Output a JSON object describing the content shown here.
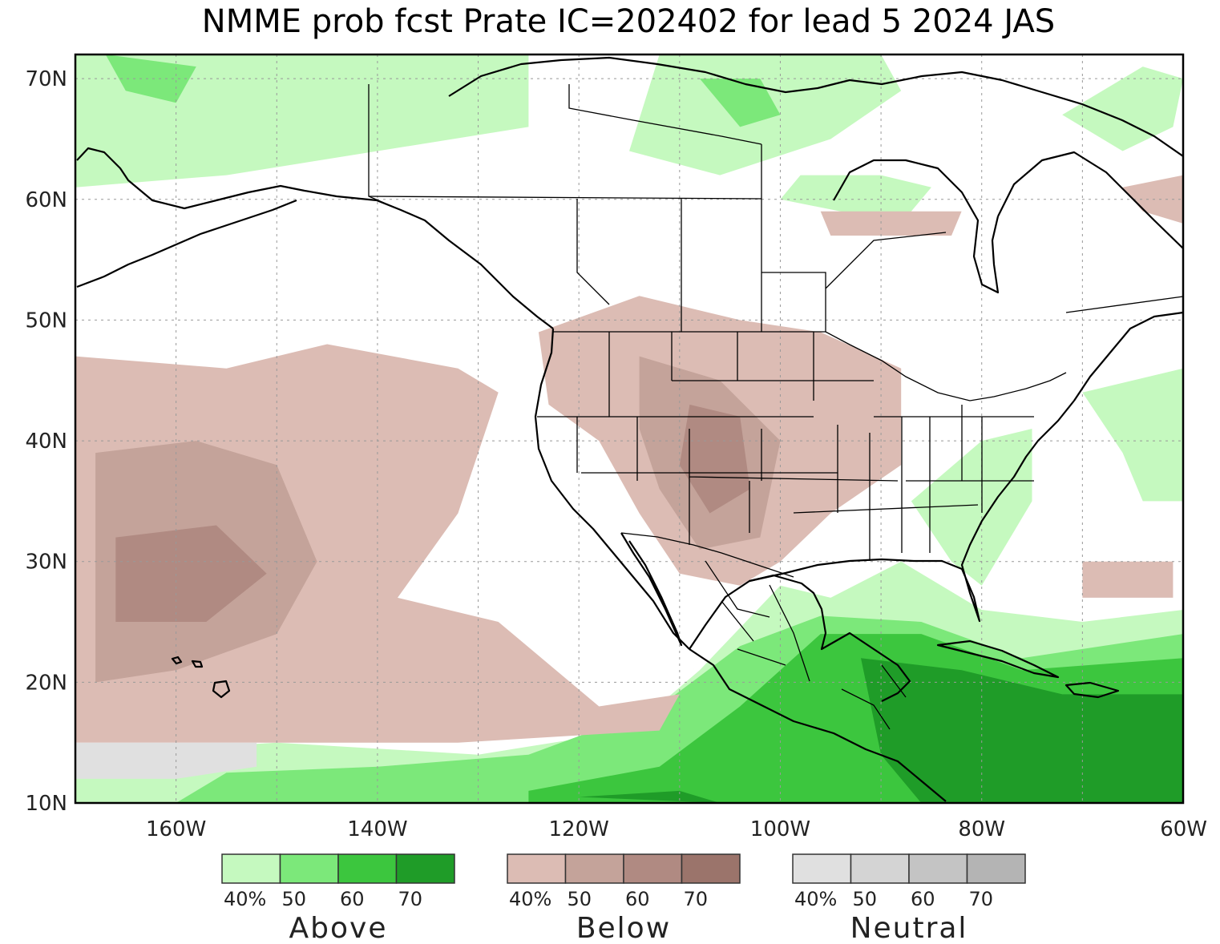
{
  "title": "NMME prob fcst Prate IC=202402 for lead 5 2024 JAS",
  "colors": {
    "above": [
      "#c5f9bf",
      "#7ce87a",
      "#3cc63e",
      "#1f9c28"
    ],
    "below": [
      "#dcbcb4",
      "#c4a39a",
      "#b08a82",
      "#9b746b"
    ],
    "neutral": [
      "#e0e0e0",
      "#d4d4d4",
      "#c4c4c4",
      "#b4b4b4"
    ]
  },
  "axes": {
    "lat_labels": [
      "70N",
      "60N",
      "50N",
      "40N",
      "30N",
      "20N",
      "10N"
    ],
    "lon_labels": [
      "160W",
      "140W",
      "120W",
      "100W",
      "80W",
      "60W"
    ]
  },
  "legend": [
    {
      "id": "above",
      "label": "Above",
      "ticks": [
        "40%",
        "50",
        "60",
        "70"
      ]
    },
    {
      "id": "below",
      "label": "Below",
      "ticks": [
        "40%",
        "50",
        "60",
        "70"
      ]
    },
    {
      "id": "neutral",
      "label": "Neutral",
      "ticks": [
        "40%",
        "50",
        "60",
        "70"
      ]
    }
  ],
  "map_extent": {
    "lon_min": -170,
    "lon_max": -60,
    "lat_min": 10,
    "lat_max": 72
  },
  "regions": [
    {
      "name": "arctic-canada-above",
      "category": "above",
      "level": 1,
      "polys": [
        [
          [
            -170,
            72
          ],
          [
            -125,
            72
          ],
          [
            -125,
            66
          ],
          [
            -140,
            64
          ],
          [
            -155,
            62
          ],
          [
            -170,
            61
          ]
        ],
        [
          [
            -112,
            72
          ],
          [
            -90,
            72
          ],
          [
            -88,
            69
          ],
          [
            -95,
            65
          ],
          [
            -106,
            62
          ],
          [
            -115,
            64
          ]
        ],
        [
          [
            -100,
            60
          ],
          [
            -88,
            58
          ],
          [
            -85,
            61
          ],
          [
            -90,
            62
          ],
          [
            -98,
            62
          ]
        ],
        [
          [
            -72,
            67
          ],
          [
            -64,
            71
          ],
          [
            -60,
            70
          ],
          [
            -61,
            66
          ],
          [
            -66,
            64
          ]
        ]
      ]
    },
    {
      "name": "alaska-above-50",
      "category": "above",
      "level": 2,
      "polys": [
        [
          [
            -167,
            72
          ],
          [
            -158,
            71
          ],
          [
            -160,
            68
          ],
          [
            -165,
            69
          ]
        ],
        [
          [
            -108,
            70
          ],
          [
            -102,
            70
          ],
          [
            -100,
            67
          ],
          [
            -104,
            66
          ]
        ]
      ]
    },
    {
      "name": "atlantic-above",
      "category": "above",
      "level": 1,
      "polys": [
        [
          [
            -70,
            44
          ],
          [
            -60,
            46
          ],
          [
            -60,
            35
          ],
          [
            -64,
            35
          ],
          [
            -66,
            39
          ]
        ]
      ]
    },
    {
      "name": "eastern-us-above",
      "category": "above",
      "level": 1,
      "polys": [
        [
          [
            -87,
            35
          ],
          [
            -80,
            40
          ],
          [
            -75,
            41
          ],
          [
            -75,
            35
          ],
          [
            -80,
            28
          ],
          [
            -83,
            30
          ]
        ]
      ]
    },
    {
      "name": "tropics-above-40",
      "category": "above",
      "level": 1,
      "polys": [
        [
          [
            -170,
            10
          ],
          [
            -170,
            14
          ],
          [
            -150,
            15
          ],
          [
            -130,
            14
          ],
          [
            -115,
            16
          ],
          [
            -108,
            21
          ],
          [
            -100,
            28
          ],
          [
            -95,
            27
          ],
          [
            -88,
            30
          ],
          [
            -80,
            26
          ],
          [
            -70,
            25
          ],
          [
            -60,
            26
          ],
          [
            -60,
            10
          ]
        ]
      ]
    },
    {
      "name": "tropics-above-50",
      "category": "above",
      "level": 2,
      "polys": [
        [
          [
            -160,
            10
          ],
          [
            -155,
            12.5
          ],
          [
            -140,
            13
          ],
          [
            -125,
            14
          ],
          [
            -112,
            18
          ],
          [
            -104,
            23
          ],
          [
            -96,
            25.5
          ],
          [
            -86,
            25
          ],
          [
            -76,
            22
          ],
          [
            -60,
            24
          ],
          [
            -60,
            10
          ]
        ]
      ]
    },
    {
      "name": "tropics-above-60",
      "category": "above",
      "level": 3,
      "polys": [
        [
          [
            -125,
            11
          ],
          [
            -112,
            13
          ],
          [
            -104,
            18
          ],
          [
            -96,
            24
          ],
          [
            -86,
            24
          ],
          [
            -76,
            21
          ],
          [
            -60,
            22
          ],
          [
            -60,
            10
          ],
          [
            -125,
            10
          ]
        ]
      ]
    },
    {
      "name": "tropics-above-70",
      "category": "above",
      "level": 4,
      "polys": [
        [
          [
            -120,
            10.5
          ],
          [
            -110,
            11
          ],
          [
            -106,
            10
          ]
        ],
        [
          [
            -92,
            22
          ],
          [
            -82,
            21
          ],
          [
            -72,
            19
          ],
          [
            -60,
            19
          ],
          [
            -60,
            10
          ],
          [
            -86,
            10
          ],
          [
            -90,
            14
          ]
        ]
      ]
    },
    {
      "name": "pacific-below-40",
      "category": "below",
      "level": 1,
      "polys": [
        [
          [
            -170,
            47
          ],
          [
            -155,
            46
          ],
          [
            -145,
            48
          ],
          [
            -132,
            46
          ],
          [
            -128,
            44
          ],
          [
            -132,
            34
          ],
          [
            -138,
            27
          ],
          [
            -128,
            25
          ],
          [
            -118,
            18
          ],
          [
            -110,
            19
          ],
          [
            -108,
            22
          ],
          [
            -112,
            16
          ],
          [
            -132,
            15
          ],
          [
            -152,
            15
          ],
          [
            -170,
            15
          ]
        ]
      ]
    },
    {
      "name": "pacific-below-50",
      "category": "below",
      "level": 2,
      "polys": [
        [
          [
            -168,
            39
          ],
          [
            -158,
            40
          ],
          [
            -150,
            38
          ],
          [
            -146,
            30
          ],
          [
            -150,
            24
          ],
          [
            -160,
            21
          ],
          [
            -168,
            20
          ]
        ]
      ]
    },
    {
      "name": "pacific-below-60",
      "category": "below",
      "level": 3,
      "polys": [
        [
          [
            -166,
            32
          ],
          [
            -156,
            33
          ],
          [
            -151,
            29
          ],
          [
            -157,
            25
          ],
          [
            -166,
            25
          ]
        ]
      ]
    },
    {
      "name": "west-us-below-40",
      "category": "below",
      "level": 1,
      "polys": [
        [
          [
            -124,
            49
          ],
          [
            -114,
            52
          ],
          [
            -104,
            50
          ],
          [
            -96,
            49
          ],
          [
            -88,
            46
          ],
          [
            -88,
            38
          ],
          [
            -95,
            34
          ],
          [
            -100,
            30
          ],
          [
            -104,
            28
          ],
          [
            -110,
            29
          ],
          [
            -114,
            34
          ],
          [
            -118,
            40
          ],
          [
            -123,
            43
          ]
        ]
      ]
    },
    {
      "name": "west-us-below-50",
      "category": "below",
      "level": 2,
      "polys": [
        [
          [
            -114,
            47
          ],
          [
            -106,
            45
          ],
          [
            -100,
            40
          ],
          [
            -102,
            32
          ],
          [
            -108,
            31
          ],
          [
            -112,
            36
          ],
          [
            -114,
            41
          ]
        ]
      ]
    },
    {
      "name": "west-us-below-60",
      "category": "below",
      "level": 3,
      "polys": [
        [
          [
            -109,
            43
          ],
          [
            -104,
            42
          ],
          [
            -103,
            36
          ],
          [
            -107,
            34
          ],
          [
            -110,
            38
          ]
        ]
      ]
    },
    {
      "name": "east-canada-below",
      "category": "below",
      "level": 1,
      "polys": [
        [
          [
            -96,
            59
          ],
          [
            -82,
            59
          ],
          [
            -83,
            57
          ],
          [
            -95,
            57
          ]
        ],
        [
          [
            -66,
            61
          ],
          [
            -60,
            62
          ],
          [
            -60,
            58
          ],
          [
            -64,
            59
          ]
        ]
      ]
    },
    {
      "name": "atlantic-below",
      "category": "below",
      "level": 1,
      "polys": [
        [
          [
            -70,
            30
          ],
          [
            -61,
            30
          ],
          [
            -61,
            27
          ],
          [
            -70,
            27
          ]
        ]
      ]
    },
    {
      "name": "pacific-neutral",
      "category": "neutral",
      "level": 1,
      "polys": [
        [
          [
            -170,
            15
          ],
          [
            -152,
            15
          ],
          [
            -152,
            13
          ],
          [
            -160,
            12
          ],
          [
            -170,
            12
          ]
        ]
      ]
    }
  ]
}
